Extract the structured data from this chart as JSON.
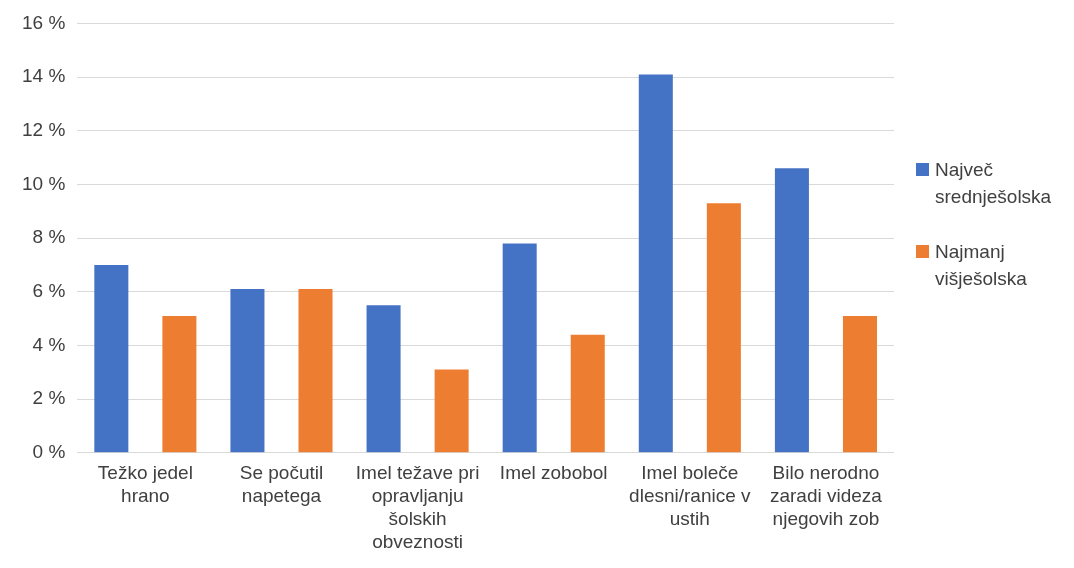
{
  "chart_data": {
    "type": "bar",
    "categories": [
      "Težko jedel hrano",
      "Se počutil napetega",
      "Imel težave pri opravljanju šolskih obveznosti",
      "Imel zobobol",
      "Imel boleče dlesni/ranice v ustih",
      "Bilo nerodno zaradi videza njegovih zob"
    ],
    "series": [
      {
        "name": "Največ srednješolska",
        "color": "#4472c4",
        "values": [
          7.0,
          6.1,
          5.5,
          7.8,
          14.1,
          10.6
        ]
      },
      {
        "name": "Najmanj višješolska",
        "color": "#ed7d31",
        "values": [
          5.1,
          6.1,
          3.1,
          4.4,
          9.3,
          5.1
        ]
      }
    ],
    "ylim": [
      0,
      16
    ],
    "yticks": [
      {
        "value": 0,
        "label": "0 %"
      },
      {
        "value": 2,
        "label": "2 %"
      },
      {
        "value": 4,
        "label": "4 %"
      },
      {
        "value": 6,
        "label": "6 %"
      },
      {
        "value": 8,
        "label": "8 %"
      },
      {
        "value": 10,
        "label": "10 %"
      },
      {
        "value": 12,
        "label": "12 %"
      },
      {
        "value": 14,
        "label": "14 %"
      },
      {
        "value": 16,
        "label": "16 %"
      }
    ],
    "grid": "y",
    "legend": "right"
  }
}
